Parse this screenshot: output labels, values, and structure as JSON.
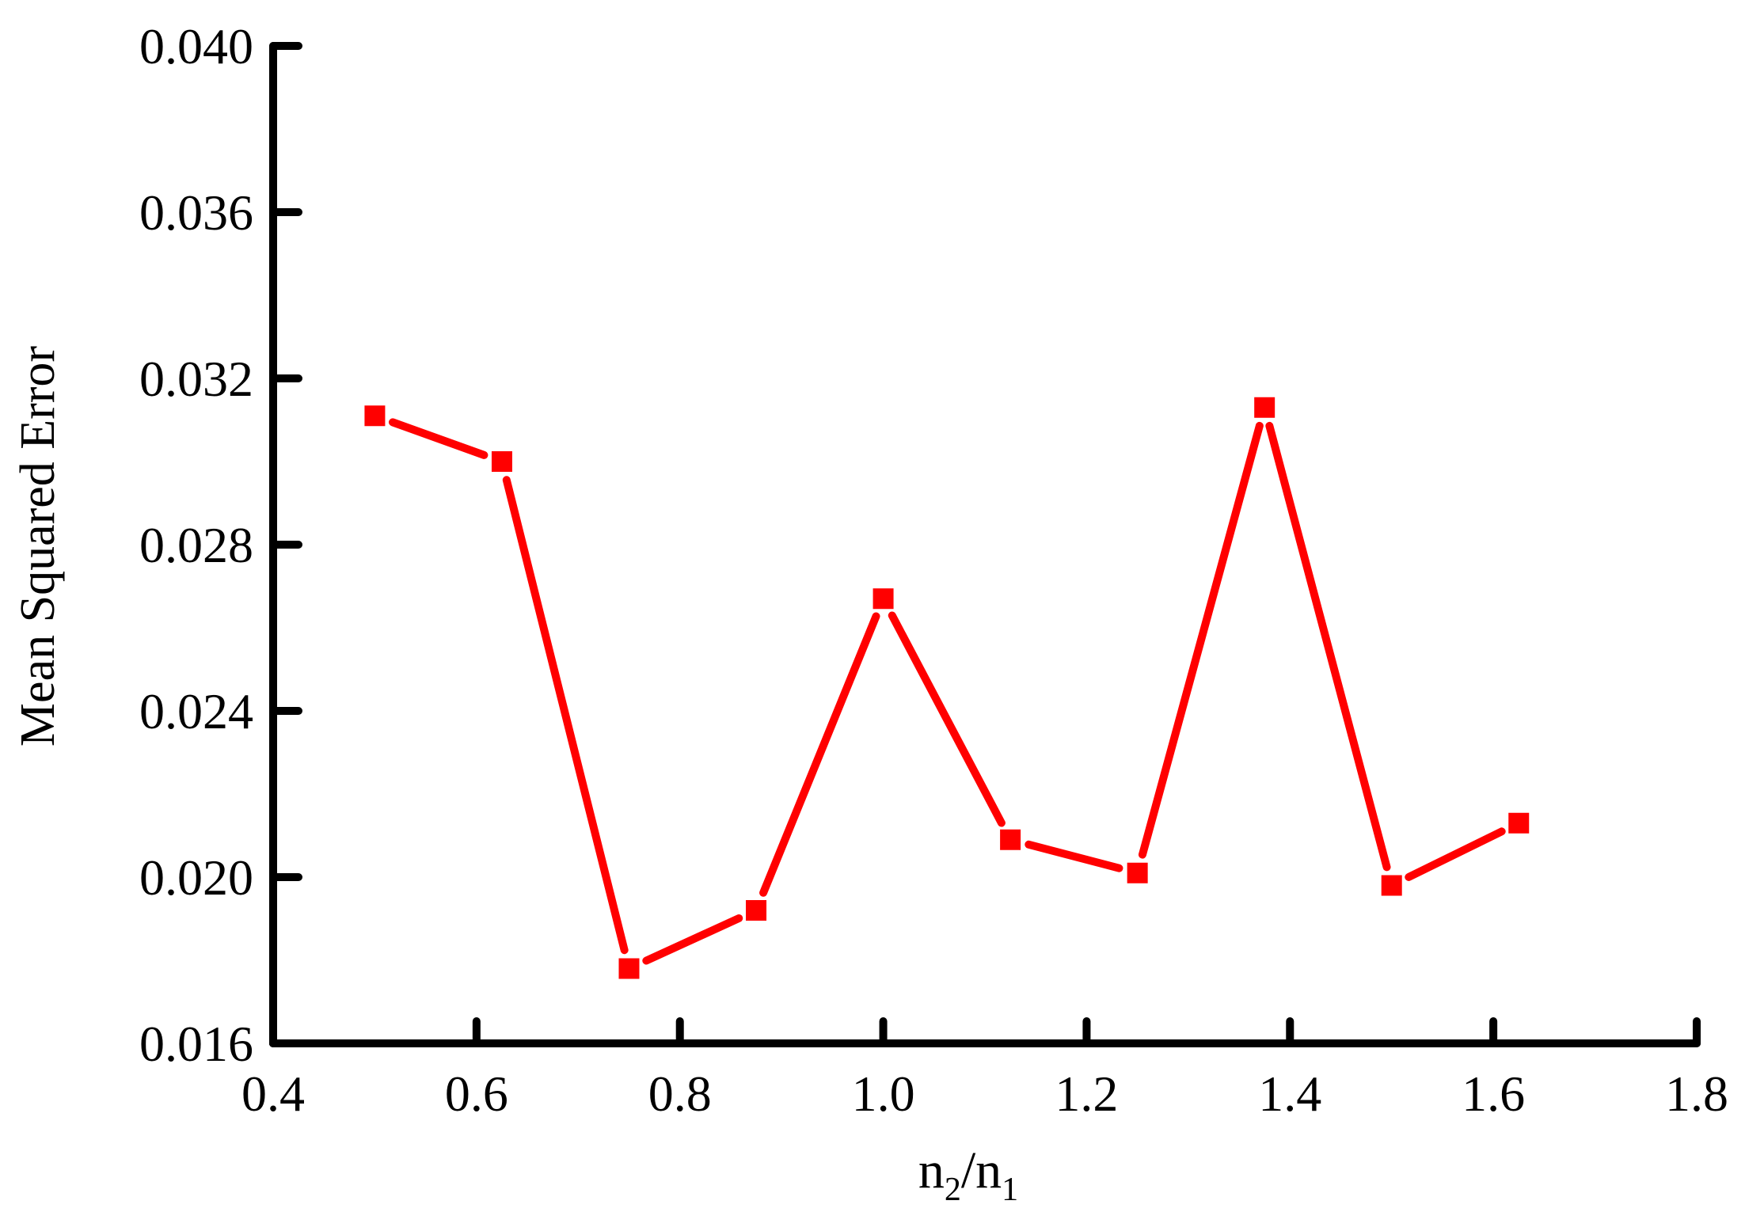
{
  "chart_data": {
    "type": "line",
    "title": "",
    "xlabel": "n2/n1",
    "xlabel_parts": {
      "n1": "n",
      "sub1": "2",
      "slash": "/",
      "n2": "n",
      "sub2": "1"
    },
    "ylabel": "Mean Squared Error",
    "xlim": [
      0.4,
      1.8
    ],
    "ylim": [
      0.016,
      0.04
    ],
    "x_ticks": [
      0.4,
      0.6,
      0.8,
      1.0,
      1.2,
      1.4,
      1.6,
      1.8
    ],
    "x_tick_labels": [
      "0.4",
      "0.6",
      "0.8",
      "1.0",
      "1.2",
      "1.4",
      "1.6",
      "1.8"
    ],
    "y_ticks": [
      0.016,
      0.02,
      0.024,
      0.028,
      0.032,
      0.036,
      0.04
    ],
    "y_tick_labels": [
      "0.016",
      "0.020",
      "0.024",
      "0.028",
      "0.032",
      "0.036",
      "0.040"
    ],
    "grid": false,
    "legend": "none",
    "series": [
      {
        "color": "#ff0000",
        "marker": "square",
        "x": [
          0.5,
          0.625,
          0.75,
          0.875,
          1.0,
          1.125,
          1.25,
          1.375,
          1.5,
          1.625
        ],
        "y": [
          0.0311,
          0.03,
          0.0178,
          0.0192,
          0.0267,
          0.0209,
          0.0201,
          0.0313,
          0.0198,
          0.0213
        ]
      }
    ]
  }
}
